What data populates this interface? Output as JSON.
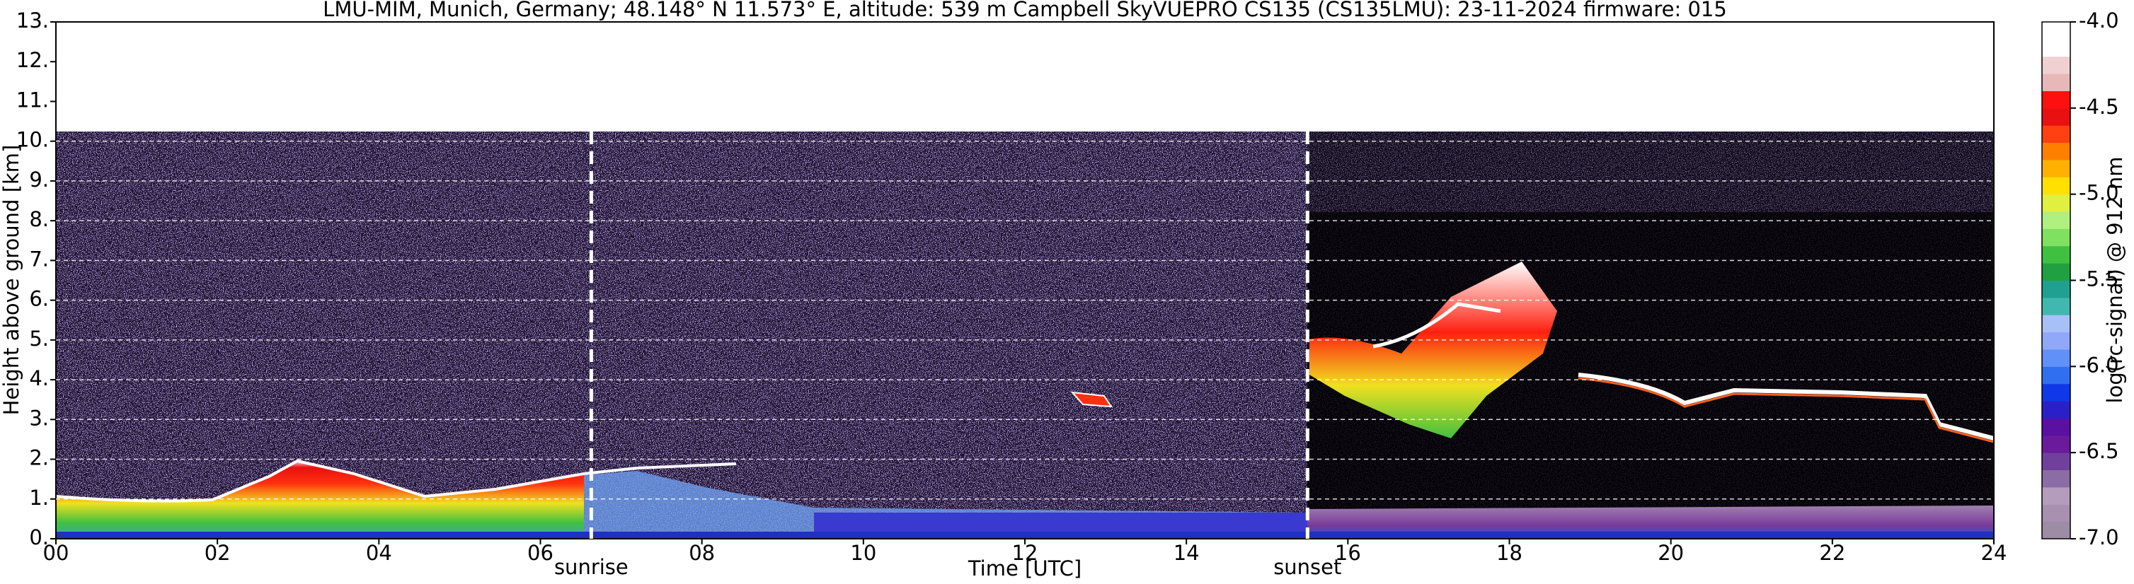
{
  "chart_data": {
    "type": "heatmap",
    "title": "LMU-MIM, Munich, Germany; 48.148° N 11.573° E, altitude: 539 m    Campbell SkyVUEPRO CS135 (CS135LMU): 23-11-2024    firmware: 015",
    "x_label": "Time [UTC]",
    "y_label": "Height above ground [km]",
    "xlim": [
      0,
      24
    ],
    "xticks": [
      {
        "value": 0,
        "label": "00"
      },
      {
        "value": 2,
        "label": "02"
      },
      {
        "value": 4,
        "label": "04"
      },
      {
        "value": 6,
        "label": "06"
      },
      {
        "value": 8,
        "label": "08"
      },
      10,
      12,
      14,
      16,
      18,
      20,
      22,
      24
    ],
    "ylim": [
      0,
      13
    ],
    "yticks": [
      {
        "value": 0,
        "label": "0."
      },
      {
        "value": 1,
        "label": "1."
      },
      {
        "value": 2,
        "label": "2."
      },
      {
        "value": 3,
        "label": "3."
      },
      {
        "value": 4,
        "label": "4."
      },
      {
        "value": 5,
        "label": "5."
      },
      {
        "value": 6,
        "label": "6."
      },
      {
        "value": 7,
        "label": "7."
      },
      {
        "value": 8,
        "label": "8."
      },
      {
        "value": 9,
        "label": "9."
      },
      {
        "value": 10,
        "label": "10."
      },
      {
        "value": 11,
        "label": "11."
      },
      {
        "value": 12,
        "label": "12."
      },
      {
        "value": 13,
        "label": "13."
      }
    ],
    "grid": true,
    "colorbar": {
      "label": "log(rc-signal) @ 912 nm",
      "lim": [
        -7,
        -4
      ],
      "ticks": [
        {
          "value": -4,
          "label": "-4.0"
        },
        -4.5,
        {
          "value": -5,
          "label": "-5.0"
        },
        -5.5,
        {
          "value": -6,
          "label": "-6.0"
        },
        -6.5,
        {
          "value": -7,
          "label": "-7.0"
        }
      ],
      "colors": [
        "#9c8ca4",
        "#a890b0",
        "#b49cbc",
        "#8c6ca4",
        "#70409c",
        "#6a1a9a",
        "#5a10a0",
        "#2a20c8",
        "#1038e8",
        "#3070f0",
        "#6090f8",
        "#90a8f8",
        "#a8c0f8",
        "#40b8b0",
        "#20a090",
        "#20a040",
        "#40c040",
        "#80e060",
        "#b0f080",
        "#e0f040",
        "#ffe000",
        "#ffb000",
        "#ff8000",
        "#ff4010",
        "#e81010",
        "#ff1010",
        "#e8b8b8",
        "#f0d0d0",
        "#ffffff",
        "#ffffff"
      ]
    },
    "annotations": [
      {
        "text": "sunrise",
        "x": 6.63
      },
      {
        "text": "sunset",
        "x": 15.5
      }
    ]
  }
}
